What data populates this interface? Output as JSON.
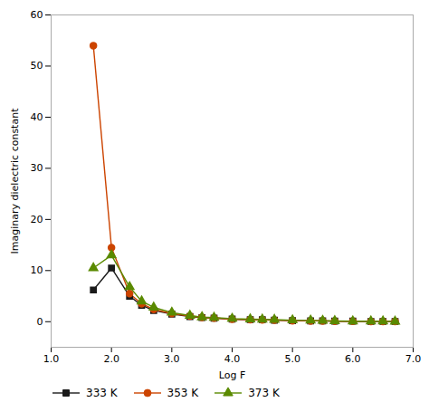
{
  "chart_data": {
    "type": "line",
    "xlabel": "Log F",
    "ylabel": "Imaginary dielectric constant",
    "x": [
      1.7,
      2.0,
      2.3,
      2.5,
      2.7,
      3.0,
      3.3,
      3.5,
      3.7,
      4.0,
      4.3,
      4.5,
      4.7,
      5.0,
      5.3,
      5.5,
      5.7,
      6.0,
      6.3,
      6.5,
      6.7
    ],
    "series": [
      {
        "name": "333 K",
        "color": "#1a1a1a",
        "marker": "square",
        "values": [
          6.2,
          10.5,
          5.0,
          3.2,
          2.2,
          1.5,
          1.0,
          0.8,
          0.7,
          0.5,
          0.4,
          0.4,
          0.3,
          0.2,
          0.15,
          0.15,
          0.1,
          0.1,
          0.05,
          0.05,
          0.05
        ]
      },
      {
        "name": "353 K",
        "color": "#cc4400",
        "marker": "circle",
        "values": [
          54.0,
          14.5,
          5.5,
          3.5,
          2.4,
          1.6,
          1.1,
          0.85,
          0.7,
          0.5,
          0.4,
          0.35,
          0.3,
          0.2,
          0.15,
          0.15,
          0.1,
          0.1,
          0.05,
          0.05,
          0.05
        ]
      },
      {
        "name": "373 K",
        "color": "#5a8a00",
        "marker": "triangle",
        "values": [
          10.5,
          13.0,
          6.8,
          4.0,
          2.8,
          1.8,
          1.2,
          0.9,
          0.8,
          0.6,
          0.5,
          0.45,
          0.4,
          0.3,
          0.25,
          0.2,
          0.15,
          0.1,
          0.1,
          0.08,
          0.05
        ]
      }
    ],
    "xlim": [
      1,
      7
    ],
    "ylim": [
      -5,
      60
    ],
    "xticks": [
      1,
      2,
      3,
      4,
      5,
      6,
      7
    ],
    "yticks": [
      0,
      10,
      20,
      30,
      40,
      50,
      60
    ],
    "legend": "bottom"
  }
}
